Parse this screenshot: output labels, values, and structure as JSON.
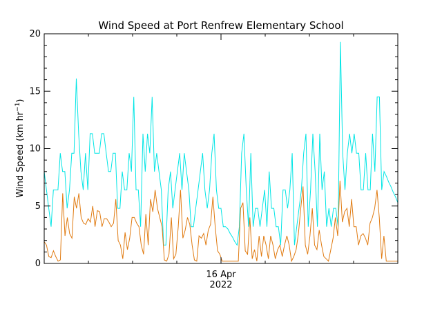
{
  "chart_data": {
    "type": "line",
    "title": "Wind Speed at Port Renfrew Elementary School",
    "ylabel_main": "Wind Speed (km hr",
    "ylabel_sup": "−1",
    "ylabel_close": ")",
    "xtick_day": "16 Apr",
    "xtick_year": "2022",
    "ylim": [
      0,
      20
    ],
    "yticks": [
      "0",
      "5",
      "10",
      "15",
      "20"
    ],
    "xlim_days": [
      0,
      2
    ],
    "series": [
      {
        "color": "#00e5e5",
        "values": [
          8.0,
          6.4,
          4.8,
          3.2,
          6.4,
          6.4,
          6.4,
          9.6,
          8.0,
          8.0,
          4.8,
          6.4,
          9.6,
          9.6,
          16.1,
          11.3,
          8.0,
          6.4,
          9.6,
          6.4,
          11.3,
          11.3,
          9.6,
          9.6,
          9.6,
          11.3,
          11.3,
          9.6,
          8.0,
          8.0,
          9.6,
          9.6,
          4.8,
          4.8,
          8.0,
          6.4,
          6.4,
          9.6,
          8.0,
          14.5,
          6.4,
          6.4,
          3.2,
          11.3,
          8.0,
          11.3,
          9.6,
          14.5,
          8.0,
          9.6,
          8.0,
          6.4,
          1.6,
          1.6,
          6.4,
          8.0,
          4.8,
          6.4,
          8.0,
          9.6,
          6.4,
          9.6,
          8.0,
          6.4,
          3.2,
          3.2,
          4.8,
          6.4,
          8.0,
          9.6,
          6.4,
          4.8,
          6.4,
          9.6,
          11.3,
          6.4,
          4.8,
          4.8,
          3.2,
          3.2,
          3.0,
          2.6,
          2.3,
          1.9,
          1.6,
          3.2,
          9.6,
          11.3,
          6.4,
          3.2,
          9.6,
          3.2,
          4.8,
          4.8,
          3.2,
          4.8,
          6.4,
          3.2,
          8.0,
          4.8,
          4.8,
          3.2,
          3.2,
          1.6,
          6.4,
          6.4,
          4.8,
          6.4,
          9.6,
          1.6,
          3.2,
          4.8,
          6.4,
          9.6,
          11.3,
          3.2,
          6.4,
          11.3,
          8.0,
          3.2,
          11.3,
          6.4,
          8.0,
          3.2,
          4.8,
          3.2,
          4.8,
          4.8,
          3.2,
          19.3,
          9.6,
          6.4,
          9.6,
          11.3,
          9.6,
          11.3,
          9.6,
          9.6,
          6.4,
          6.4,
          9.6,
          6.4,
          6.4,
          11.3,
          8.0,
          14.5,
          14.5,
          6.4,
          8.0,
          7.6,
          7.1,
          6.7,
          6.2,
          5.8,
          5.3
        ]
      },
      {
        "color": "#e07a10",
        "values": [
          1.9,
          1.6,
          0.6,
          0.5,
          1.1,
          0.6,
          0.2,
          0.3,
          6.1,
          2.4,
          4.0,
          2.6,
          2.2,
          5.8,
          4.8,
          6.1,
          4.0,
          3.5,
          3.4,
          3.9,
          3.6,
          5.0,
          3.2,
          4.6,
          4.5,
          3.2,
          3.9,
          3.9,
          3.6,
          3.2,
          3.5,
          5.6,
          2.0,
          1.6,
          0.4,
          2.7,
          1.2,
          2.2,
          4.0,
          4.0,
          3.5,
          3.2,
          1.6,
          0.8,
          4.3,
          1.6,
          5.6,
          4.5,
          6.4,
          4.8,
          4.0,
          3.2,
          0.3,
          0.2,
          0.8,
          4.0,
          0.4,
          0.8,
          3.2,
          6.4,
          2.2,
          2.9,
          4.0,
          3.4,
          1.6,
          0.3,
          0.2,
          2.4,
          2.2,
          2.6,
          1.6,
          2.9,
          3.4,
          5.8,
          3.2,
          1.1,
          0.8,
          0.2,
          0.2,
          0.2,
          0.2,
          0.2,
          0.2,
          0.2,
          0.2,
          4.8,
          5.3,
          1.1,
          0.8,
          4.0,
          0.4,
          1.2,
          0.2,
          2.4,
          0.6,
          2.4,
          1.6,
          0.4,
          2.4,
          1.6,
          0.4,
          1.2,
          1.6,
          0.6,
          1.6,
          2.4,
          1.6,
          0.2,
          0.6,
          1.2,
          2.6,
          4.8,
          6.7,
          1.6,
          0.8,
          2.4,
          4.8,
          1.6,
          1.2,
          2.9,
          1.6,
          0.6,
          0.4,
          0.2,
          1.2,
          2.2,
          4.0,
          2.4,
          7.2,
          3.6,
          4.5,
          4.8,
          3.2,
          5.6,
          3.2,
          3.2,
          1.6,
          2.4,
          2.6,
          2.2,
          1.6,
          3.5,
          4.0,
          4.8,
          6.4,
          4.0,
          0.4,
          2.4,
          0.2,
          0.2,
          0.2,
          0.2,
          0.2,
          0.2
        ]
      }
    ]
  }
}
